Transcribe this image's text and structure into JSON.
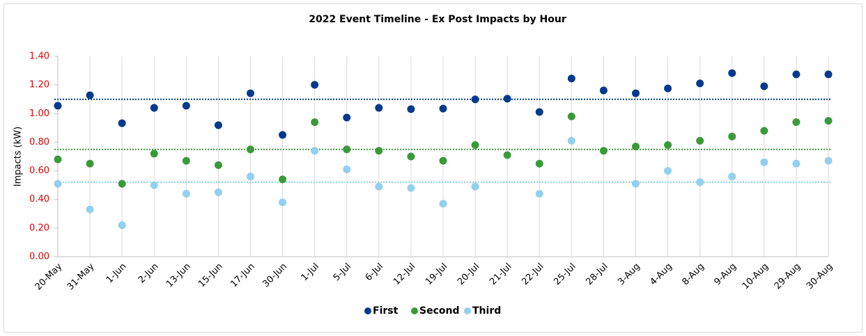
{
  "chart_data": {
    "type": "scatter",
    "title": "2022 Event Timeline - Ex Post Impacts by Hour",
    "y_label": "Impacts (kW)",
    "categories": [
      "20-May",
      "31-May",
      "1-Jun",
      "2-Jun",
      "13-Jun",
      "15-Jun",
      "17-Jun",
      "30-Jun",
      "1-Jul",
      "5-Jul",
      "6-Jul",
      "12-Jul",
      "19-Jul",
      "20-Jul",
      "21-Jul",
      "22-Jul",
      "25-Jul",
      "28-Jul",
      "3-Aug",
      "4-Aug",
      "8-Aug",
      "9-Aug",
      "10-Aug",
      "29-Aug",
      "30-Aug"
    ],
    "series": [
      {
        "name": "First",
        "color": "#003a8c",
        "average": 1.1,
        "values": [
          1.055,
          1.128,
          0.933,
          1.04,
          1.055,
          0.919,
          1.142,
          0.851,
          1.201,
          0.972,
          1.04,
          1.031,
          1.035,
          1.099,
          1.104,
          1.011,
          1.245,
          1.162,
          1.142,
          1.176,
          1.211,
          1.283,
          1.191,
          1.274,
          1.274
        ]
      },
      {
        "name": "Second",
        "color": "#3a9a3a",
        "average": 0.75,
        "values": [
          0.68,
          0.65,
          0.51,
          0.72,
          0.67,
          0.64,
          0.75,
          0.54,
          0.94,
          0.75,
          0.74,
          0.7,
          0.67,
          0.78,
          0.71,
          0.65,
          0.98,
          0.74,
          0.77,
          0.78,
          0.81,
          0.84,
          0.88,
          0.94,
          0.95
        ]
      },
      {
        "name": "Third",
        "color": "#92d0ee",
        "average": 0.52,
        "values": [
          0.51,
          0.33,
          0.22,
          0.5,
          0.44,
          0.45,
          0.56,
          0.38,
          0.74,
          0.61,
          0.49,
          0.48,
          0.37,
          0.49,
          null,
          0.44,
          0.81,
          null,
          0.51,
          0.6,
          0.52,
          0.56,
          0.66,
          0.65,
          0.67
        ]
      }
    ],
    "ylim": [
      0,
      1.4
    ],
    "yticks": [
      {
        "value": 0,
        "label": "0.00"
      },
      {
        "value": 0.2,
        "label": "0.20"
      },
      {
        "value": 0.4,
        "label": "0.40"
      },
      {
        "value": 0.6,
        "label": "0.60"
      },
      {
        "value": 0.8,
        "label": "0.80"
      },
      {
        "value": 1.0,
        "label": "1.00"
      },
      {
        "value": 1.2,
        "label": "1.20"
      },
      {
        "value": 1.4,
        "label": "1.40"
      }
    ],
    "grid": "vertical",
    "legend": "bottom"
  }
}
